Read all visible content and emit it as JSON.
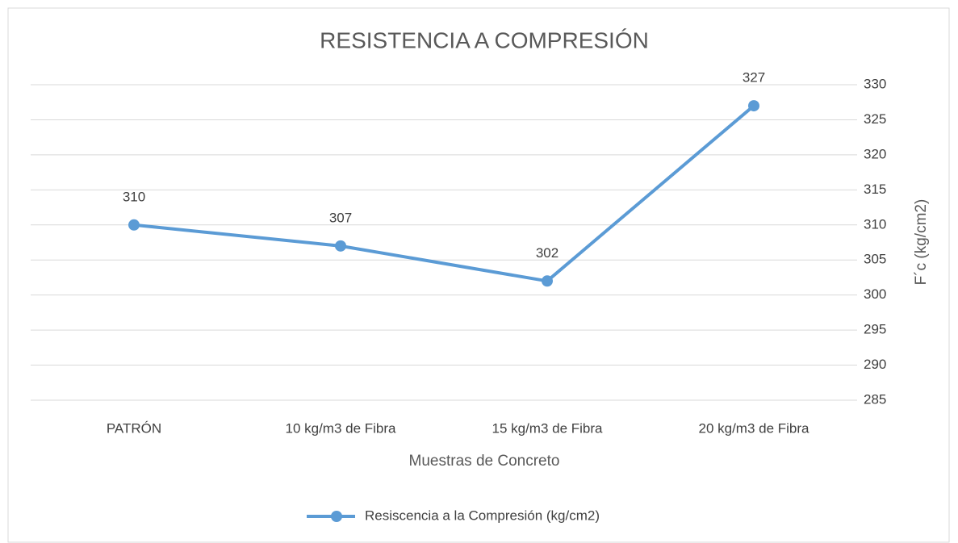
{
  "chart_data": {
    "type": "line",
    "title": "RESISTENCIA A COMPRESIÓN",
    "x_label": "Muestras de Concreto",
    "y_label": "F´c (kg/cm2)",
    "categories": [
      "PATRÓN",
      "10 kg/m3 de Fibra",
      "15 kg/m3 de Fibra",
      "20 kg/m3 de Fibra"
    ],
    "series": [
      {
        "name": "Resiscencia a la Compresión (kg/cm2)",
        "color": "#5b9bd5",
        "values": [
          310,
          307,
          302,
          327
        ]
      }
    ],
    "ylim": [
      285,
      330
    ],
    "yticks": [
      285,
      290,
      295,
      300,
      305,
      310,
      315,
      320,
      325,
      330
    ],
    "y_axis_side": "right",
    "grid": true,
    "legend": "bottom",
    "data_labels": true
  }
}
